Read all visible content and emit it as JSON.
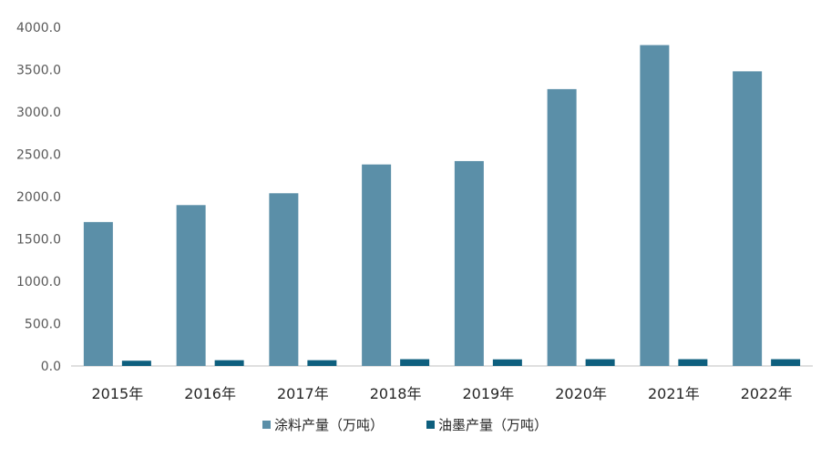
{
  "chart_data": {
    "type": "bar",
    "categories": [
      "2015年",
      "2016年",
      "2017年",
      "2018年",
      "2019年",
      "2020年",
      "2021年",
      "2022年"
    ],
    "series": [
      {
        "name": "涂料产量（万吨）",
        "color": "#5b8fa8",
        "values": [
          1700,
          1900,
          2040,
          2380,
          2420,
          3270,
          3790,
          3480
        ]
      },
      {
        "name": "油墨产量（万吨）",
        "color": "#0e5f7e",
        "values": [
          62,
          68,
          68,
          80,
          78,
          80,
          80,
          80
        ]
      }
    ],
    "ylim": [
      0,
      4000
    ],
    "yticks": [
      "0.0",
      "500.0",
      "1000.0",
      "1500.0",
      "2000.0",
      "2500.0",
      "3000.0",
      "3500.0",
      "4000.0"
    ],
    "grid": false,
    "legend_position": "bottom"
  }
}
